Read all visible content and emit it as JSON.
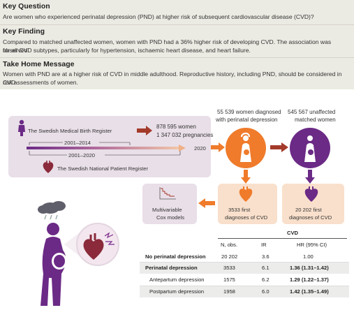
{
  "key_question": {
    "heading": "Key Question",
    "text": "Are women who experienced perinatal depression (PND) at higher risk of subsequent cardiovascular disease (CVD)?"
  },
  "key_finding": {
    "heading": "Key Finding",
    "line1": "Compared to matched unaffected women, women with PND had a 36% higher risk of developing CVD. The association was observed",
    "line2": "for all CVD subtypes, particularly for hypertension, ischaemic heart disease, and heart failure."
  },
  "take_home": {
    "heading": "Take Home Message",
    "line1": "Women with PND are at a higher risk of CVD in middle adulthood. Reproductive history, including PND, should be considered in CVD",
    "line2": "risk assessments of women."
  },
  "registers": {
    "birth_register": "The Swedish Medical Birth Register",
    "birth_years": "2001–2014",
    "patient_years": "2001–2020",
    "patient_register": "The Swedish National Patient Register",
    "end_year": "2020",
    "women": "878 595 women",
    "pregnancies": "1 347 032 pregnancies"
  },
  "groups": {
    "pnd_line1": "55 539 women diagnosed",
    "pnd_line2": "with perinatal depression",
    "unaffected_line1": "545 567 unaffected",
    "unaffected_line2": "matched women",
    "pnd_cvd_line1": "3533 first",
    "pnd_cvd_line2": "diagnoses of CVD",
    "unaff_cvd_line1": "20 202 first",
    "unaff_cvd_line2": "diagnoses of CVD",
    "model_line1": "Multivariable",
    "model_line2": "Cox models"
  },
  "table": {
    "group_header": "CVD",
    "columns": [
      "N, obs.",
      "IR",
      "HR (95% CI)"
    ],
    "rows": [
      {
        "label": "No perinatal depression",
        "n": "20 202",
        "ir": "3.6",
        "hr": "1.00"
      },
      {
        "label": "Perinatal depression",
        "n": "3533",
        "ir": "6.1",
        "hr": "1.36 (1.31–1.42)"
      },
      {
        "label": "Antepartum depression",
        "n": "1575",
        "ir": "6.2",
        "hr": "1.29 (1.22–1.37)"
      },
      {
        "label": "Postpartum depression",
        "n": "1958",
        "ir": "6.0",
        "hr": "1.42 (1.35–1.49)"
      }
    ]
  },
  "colors": {
    "panel": "#ecebe3",
    "purple": "#6b2a86",
    "orange": "#ef7b2b",
    "light_purple": "#e6d8e6",
    "light_orange": "#f9e0cc",
    "dark_red": "#a33a2a"
  }
}
